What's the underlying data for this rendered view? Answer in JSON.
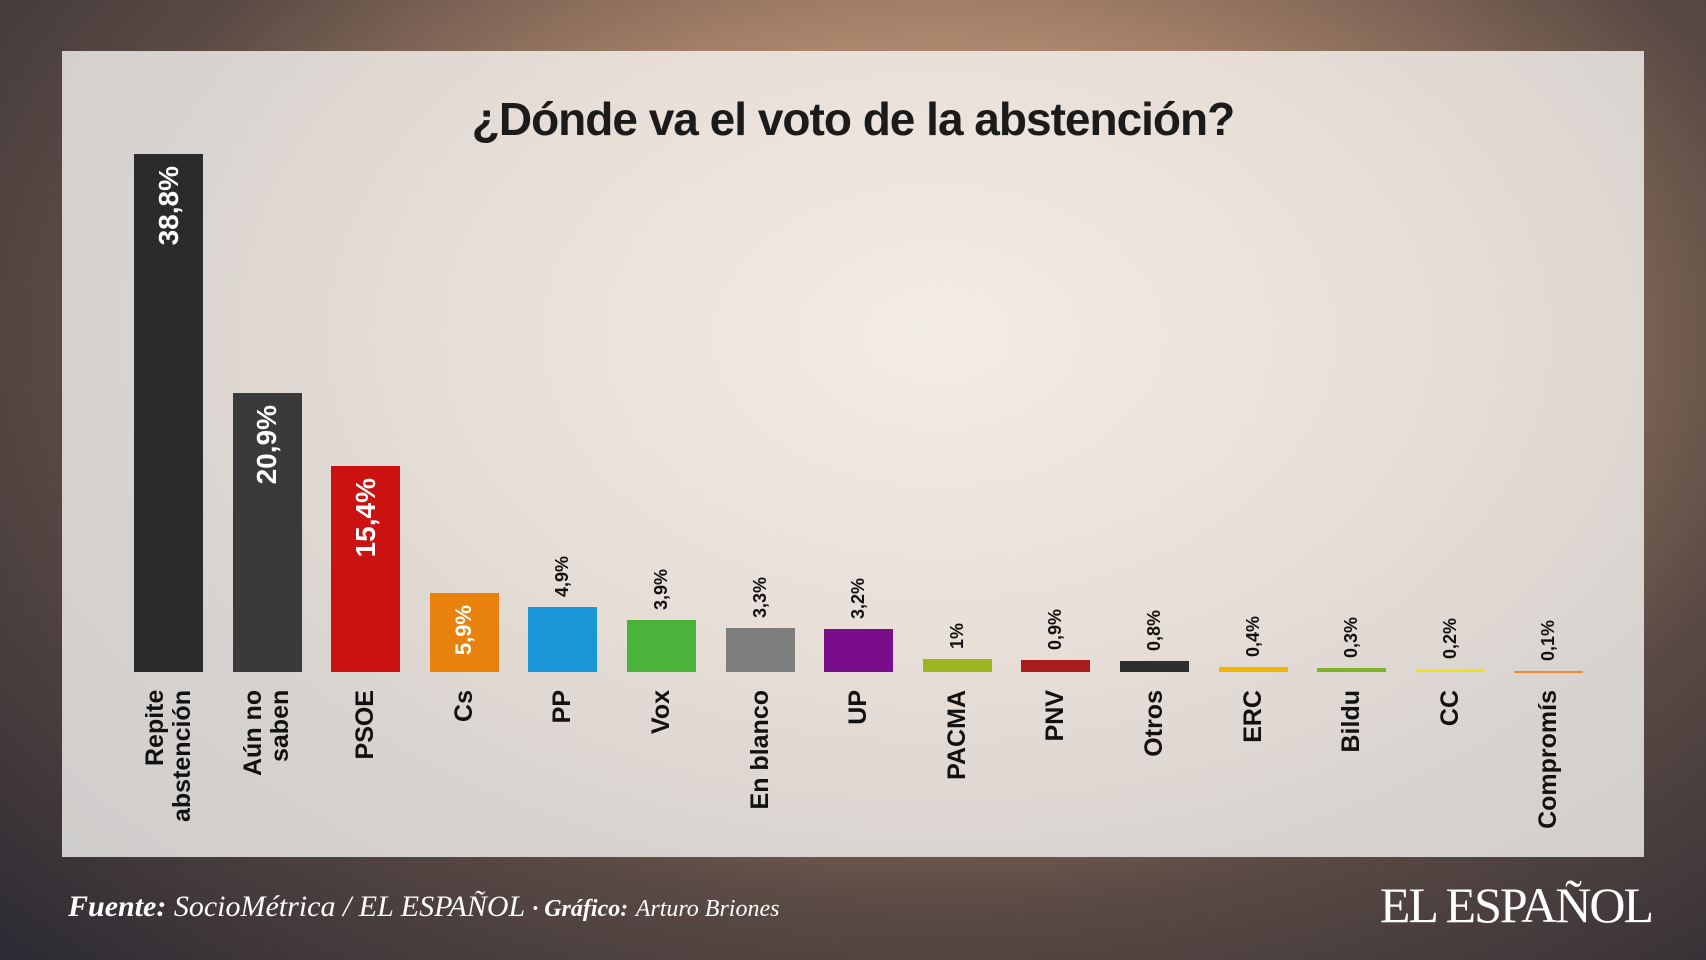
{
  "chart_data": {
    "type": "bar",
    "title": "¿Dónde va el voto de la abstención?",
    "categories": [
      "Repite abstención",
      "Aún no saben",
      "PSOE",
      "Cs",
      "PP",
      "Vox",
      "En blanco",
      "UP",
      "PACMA",
      "PNV",
      "Otros",
      "ERC",
      "Bildu",
      "CC",
      "Compromís"
    ],
    "values": [
      38.8,
      20.9,
      15.4,
      5.9,
      4.9,
      3.9,
      3.3,
      3.2,
      1,
      0.9,
      0.8,
      0.4,
      0.3,
      0.2,
      0.1
    ],
    "value_labels": [
      "38,8%",
      "20,9%",
      "15,4%",
      "5,9%",
      "4,9%",
      "3,9%",
      "3,3%",
      "3,2%",
      "1%",
      "0,9%",
      "0,8%",
      "0,4%",
      "0,3%",
      "0,2%",
      "0,1%"
    ],
    "colors": [
      "#2b2b2b",
      "#3a3a3a",
      "#cc1111",
      "#e8820c",
      "#1a96d6",
      "#4bb33a",
      "#7d7d7d",
      "#7a0d8c",
      "#9ab520",
      "#a81c1c",
      "#2e2e2e",
      "#f2b400",
      "#7fb22a",
      "#f0e020",
      "#ee8a30"
    ]
  },
  "footer": {
    "source_label": "Fuente:",
    "source": "SocioMétrica / EL ESPAÑOL",
    "credit_label": "· Gráfico:",
    "credit": "Arturo Briones",
    "logo": "EL ESPAÑOL"
  }
}
